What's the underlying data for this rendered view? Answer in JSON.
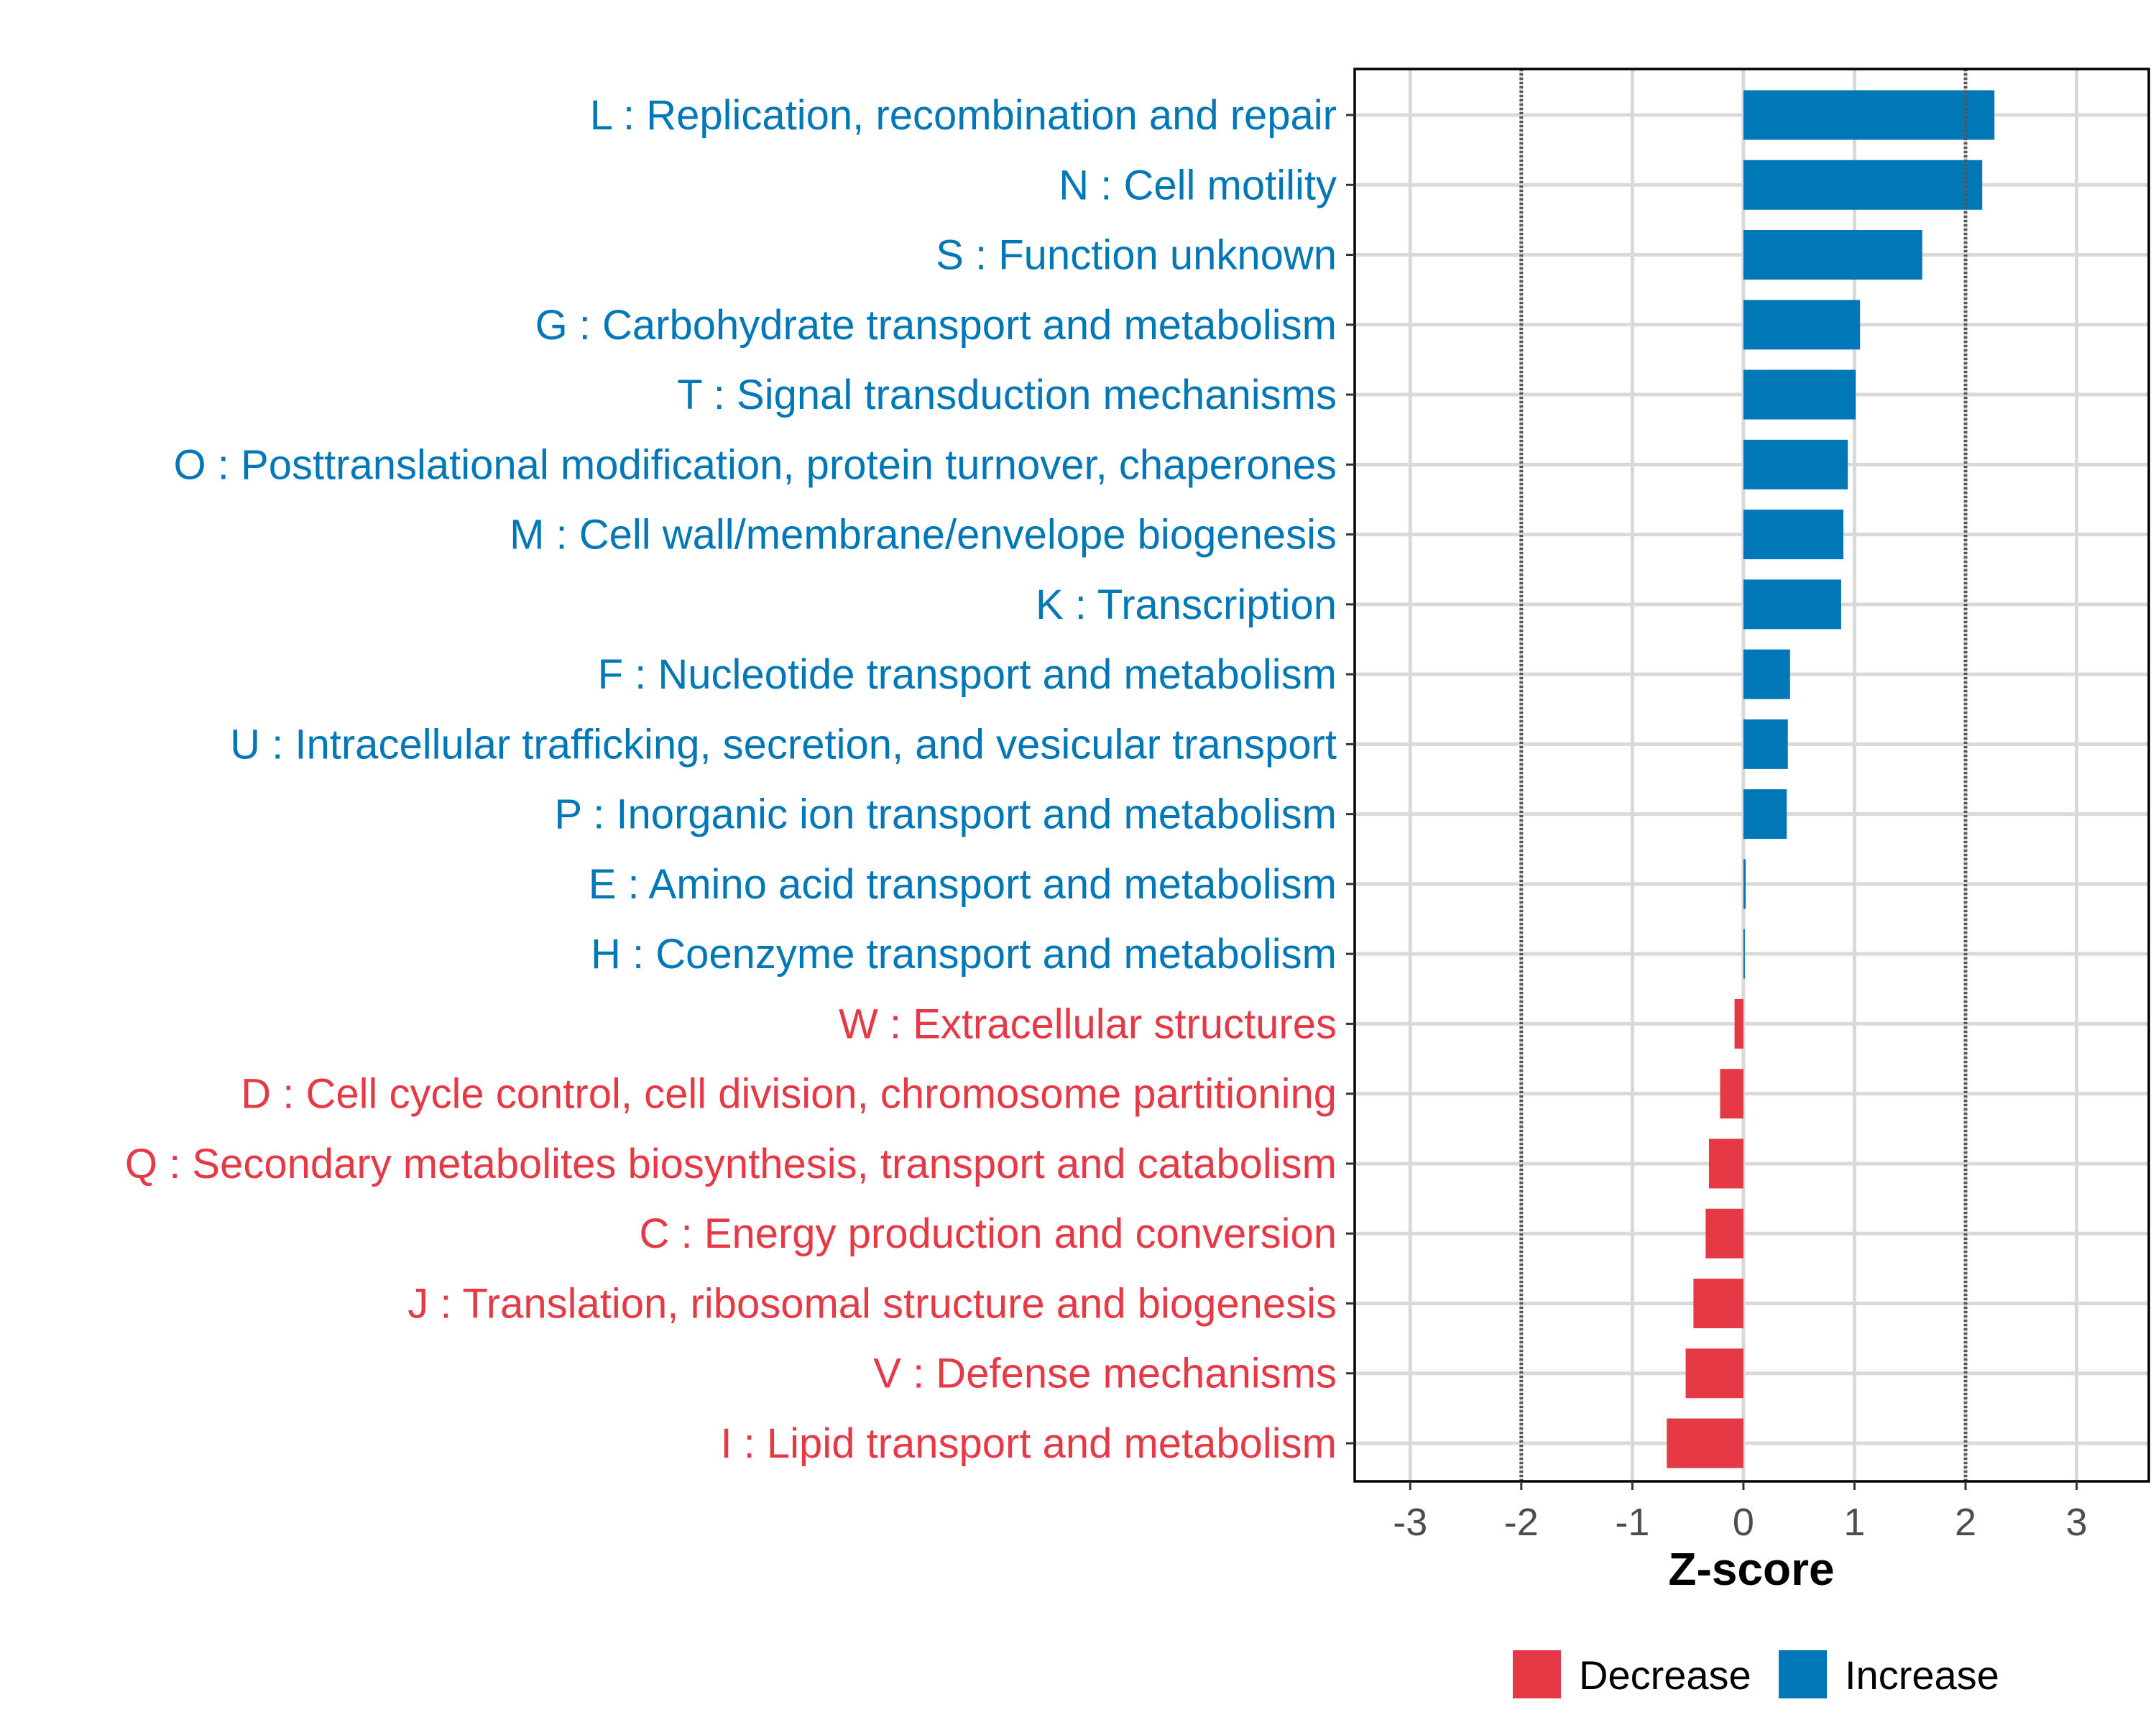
{
  "chart_data": {
    "type": "bar",
    "orientation": "horizontal",
    "xlabel": "Z-score",
    "ylabel": "",
    "xlim": [
      -3.5,
      3.65
    ],
    "xticks": [
      -3,
      -2,
      -1,
      0,
      1,
      2,
      3
    ],
    "reference_lines": [
      -2,
      2
    ],
    "grid": true,
    "legend_position": "bottom",
    "legend": [
      {
        "name": "Decrease",
        "color": "#E63946"
      },
      {
        "name": "Increase",
        "color": "#0077B6"
      }
    ],
    "categories": [
      "L : Replication, recombination and repair",
      "N : Cell motility",
      "S : Function unknown",
      "G : Carbohydrate transport and metabolism",
      "T : Signal transduction mechanisms",
      "O : Posttranslational modification, protein turnover, chaperones",
      "M : Cell wall/membrane/envelope biogenesis",
      "K : Transcription",
      "F : Nucleotide transport and metabolism",
      "U : Intracellular trafficking, secretion, and vesicular transport",
      "P : Inorganic ion transport and metabolism",
      "E : Amino acid transport and metabolism",
      "H : Coenzyme transport and metabolism",
      "W : Extracellular structures",
      "D : Cell cycle control, cell division, chromosome partitioning",
      "Q : Secondary metabolites biosynthesis, transport and catabolism",
      "C : Energy production and conversion",
      "J : Translation, ribosomal structure and biogenesis",
      "V : Defense mechanisms",
      "I : Lipid transport and metabolism"
    ],
    "values": [
      2.26,
      2.15,
      1.61,
      1.05,
      1.01,
      0.94,
      0.9,
      0.88,
      0.42,
      0.4,
      0.39,
      0.02,
      0.005,
      -0.08,
      -0.21,
      -0.31,
      -0.34,
      -0.45,
      -0.52,
      -0.69
    ]
  }
}
